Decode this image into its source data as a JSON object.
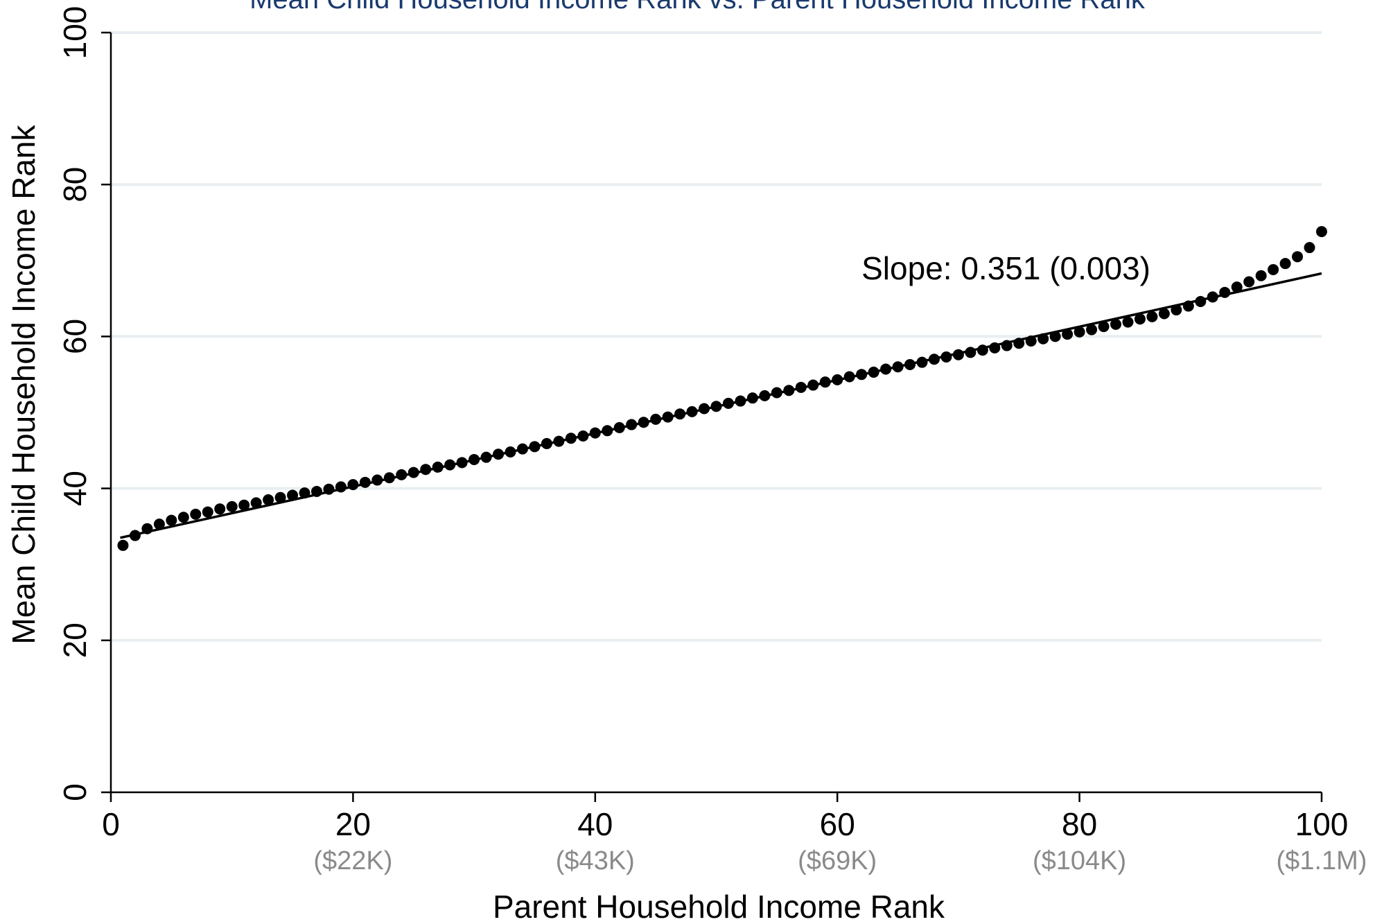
{
  "chart_data": {
    "type": "scatter",
    "title": "Mean Child Household Income Rank vs. Parent Household Income Rank",
    "xlabel": "Parent Household Income Rank",
    "ylabel": "Mean Child Household Income Rank",
    "xlim": [
      0,
      100
    ],
    "ylim": [
      0,
      100
    ],
    "grid": true,
    "colors": {
      "title": "#1a3a6e",
      "points": "#000000",
      "grid": "#e8eef1",
      "sublabel": "#8a8a8a"
    },
    "x_ticks": [
      {
        "value": 0,
        "label": "0",
        "sub": ""
      },
      {
        "value": 20,
        "label": "20",
        "sub": "($22K)"
      },
      {
        "value": 40,
        "label": "40",
        "sub": "($43K)"
      },
      {
        "value": 60,
        "label": "60",
        "sub": "($69K)"
      },
      {
        "value": 80,
        "label": "80",
        "sub": "($104K)"
      },
      {
        "value": 100,
        "label": "100",
        "sub": "($1.1M)"
      }
    ],
    "y_ticks": [
      {
        "value": 0,
        "label": "0"
      },
      {
        "value": 20,
        "label": "20"
      },
      {
        "value": 40,
        "label": "40"
      },
      {
        "value": 60,
        "label": "60"
      },
      {
        "value": 80,
        "label": "80"
      },
      {
        "value": 100,
        "label": "100"
      }
    ],
    "annotation": {
      "text": "Slope: 0.351 (0.003)",
      "x": 62,
      "y": 69
    },
    "fit_line": {
      "x": [
        1,
        100
      ],
      "y": [
        33.5,
        68.3
      ]
    },
    "series": [
      {
        "x": [
          1,
          2,
          3,
          4,
          5,
          6,
          7,
          8,
          9,
          10,
          11,
          12,
          13,
          14,
          15,
          16,
          17,
          18,
          19,
          20,
          21,
          22,
          23,
          24,
          25,
          26,
          27,
          28,
          29,
          30,
          31,
          32,
          33,
          34,
          35,
          36,
          37,
          38,
          39,
          40,
          41,
          42,
          43,
          44,
          45,
          46,
          47,
          48,
          49,
          50,
          51,
          52,
          53,
          54,
          55,
          56,
          57,
          58,
          59,
          60,
          61,
          62,
          63,
          64,
          65,
          66,
          67,
          68,
          69,
          70,
          71,
          72,
          73,
          74,
          75,
          76,
          77,
          78,
          79,
          80,
          81,
          82,
          83,
          84,
          85,
          86,
          87,
          88,
          89,
          90,
          91,
          92,
          93,
          94,
          95,
          96,
          97,
          98,
          99,
          100
        ],
        "y": [
          32.5,
          33.8,
          34.7,
          35.3,
          35.8,
          36.2,
          36.6,
          36.9,
          37.3,
          37.6,
          37.8,
          38.1,
          38.5,
          38.8,
          39.1,
          39.4,
          39.6,
          39.9,
          40.2,
          40.5,
          40.8,
          41.1,
          41.4,
          41.8,
          42.1,
          42.5,
          42.8,
          43.1,
          43.4,
          43.8,
          44.1,
          44.5,
          44.8,
          45.2,
          45.5,
          45.9,
          46.2,
          46.6,
          46.9,
          47.3,
          47.6,
          48.0,
          48.4,
          48.7,
          49.1,
          49.4,
          49.8,
          50.1,
          50.5,
          50.8,
          51.2,
          51.5,
          51.9,
          52.2,
          52.6,
          52.9,
          53.3,
          53.6,
          54.0,
          54.3,
          54.7,
          55.0,
          55.3,
          55.7,
          56.0,
          56.3,
          56.6,
          57.0,
          57.3,
          57.6,
          57.9,
          58.2,
          58.5,
          58.8,
          59.1,
          59.4,
          59.7,
          60.0,
          60.3,
          60.6,
          60.9,
          61.3,
          61.6,
          61.9,
          62.3,
          62.6,
          63.0,
          63.5,
          64.0,
          64.6,
          65.2,
          65.8,
          66.5,
          67.2,
          68.0,
          68.8,
          69.6,
          70.5,
          71.7,
          73.8
        ]
      }
    ]
  }
}
